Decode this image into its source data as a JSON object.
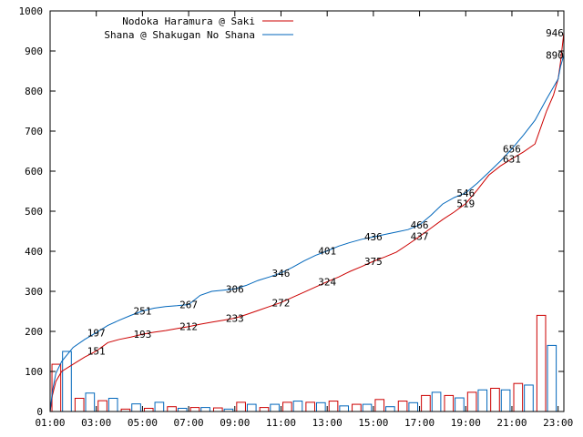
{
  "chart_data": {
    "type": "line",
    "title": "",
    "xlabel": "",
    "ylabel": "",
    "x_range_hours": [
      1.0,
      23.25
    ],
    "ylim": [
      0,
      1000
    ],
    "y_ticks": [
      0,
      100,
      200,
      300,
      400,
      500,
      600,
      700,
      800,
      900,
      1000
    ],
    "x_ticks": [
      {
        "hour": 1,
        "label": "01:00"
      },
      {
        "hour": 3,
        "label": "03:00"
      },
      {
        "hour": 5,
        "label": "05:00"
      },
      {
        "hour": 7,
        "label": "07:00"
      },
      {
        "hour": 9,
        "label": "09:00"
      },
      {
        "hour": 11,
        "label": "11:00"
      },
      {
        "hour": 13,
        "label": "13:00"
      },
      {
        "hour": 15,
        "label": "15:00"
      },
      {
        "hour": 17,
        "label": "17:00"
      },
      {
        "hour": 19,
        "label": "19:00"
      },
      {
        "hour": 21,
        "label": "21:00"
      },
      {
        "hour": 23,
        "label": "23:00"
      }
    ],
    "grid": false,
    "legend_position": "top-left",
    "series": [
      {
        "name": "Nodoka Haramura @ Saki",
        "color": "#cc0000",
        "cumulative": [
          [
            1.0,
            0
          ],
          [
            1.1,
            40
          ],
          [
            1.25,
            75
          ],
          [
            1.5,
            100
          ],
          [
            2.0,
            118
          ],
          [
            2.5,
            136
          ],
          [
            3.0,
            151
          ],
          [
            3.5,
            172
          ],
          [
            4.0,
            180
          ],
          [
            4.5,
            186
          ],
          [
            5.0,
            193
          ],
          [
            5.5,
            198
          ],
          [
            6.0,
            202
          ],
          [
            6.5,
            207
          ],
          [
            7.0,
            212
          ],
          [
            7.5,
            218
          ],
          [
            8.0,
            223
          ],
          [
            8.5,
            228
          ],
          [
            9.0,
            233
          ],
          [
            9.5,
            242
          ],
          [
            10.0,
            252
          ],
          [
            10.5,
            262
          ],
          [
            11.0,
            272
          ],
          [
            11.5,
            285
          ],
          [
            12.0,
            298
          ],
          [
            12.5,
            311
          ],
          [
            13.0,
            324
          ],
          [
            13.5,
            336
          ],
          [
            14.0,
            350
          ],
          [
            14.5,
            362
          ],
          [
            15.0,
            375
          ],
          [
            15.5,
            386
          ],
          [
            16.0,
            398
          ],
          [
            16.5,
            417
          ],
          [
            17.0,
            437
          ],
          [
            17.5,
            458
          ],
          [
            18.0,
            479
          ],
          [
            18.5,
            498
          ],
          [
            19.0,
            519
          ],
          [
            19.5,
            553
          ],
          [
            20.0,
            590
          ],
          [
            20.5,
            613
          ],
          [
            21.0,
            631
          ],
          [
            21.5,
            648
          ],
          [
            22.0,
            668
          ],
          [
            22.5,
            750
          ],
          [
            22.8,
            790
          ],
          [
            23.0,
            830
          ],
          [
            23.1,
            870
          ],
          [
            23.25,
            946
          ]
        ],
        "point_labels": [
          {
            "hour": 3,
            "value": 151
          },
          {
            "hour": 5,
            "value": 193
          },
          {
            "hour": 7,
            "value": 212
          },
          {
            "hour": 9,
            "value": 233
          },
          {
            "hour": 11,
            "value": 272
          },
          {
            "hour": 13,
            "value": 324
          },
          {
            "hour": 15,
            "value": 375
          },
          {
            "hour": 17,
            "value": 437
          },
          {
            "hour": 19,
            "value": 519
          },
          {
            "hour": 21,
            "value": 631
          },
          {
            "hour": 23.2,
            "value": 946
          }
        ],
        "hourly_counts": [
          118,
          33,
          27,
          6,
          8,
          12,
          10,
          9,
          23,
          10,
          23,
          23,
          26,
          18,
          30,
          26,
          40,
          40,
          48,
          58,
          70,
          240
        ]
      },
      {
        "name": "Shana @ Shakugan No Shana",
        "color": "#0066bb",
        "cumulative": [
          [
            1.0,
            0
          ],
          [
            1.1,
            50
          ],
          [
            1.25,
            95
          ],
          [
            1.5,
            125
          ],
          [
            2.0,
            160
          ],
          [
            2.5,
            180
          ],
          [
            3.0,
            197
          ],
          [
            3.5,
            215
          ],
          [
            4.0,
            228
          ],
          [
            4.5,
            240
          ],
          [
            5.0,
            251
          ],
          [
            5.5,
            258
          ],
          [
            6.0,
            262
          ],
          [
            6.5,
            264
          ],
          [
            7.0,
            267
          ],
          [
            7.5,
            290
          ],
          [
            8.0,
            300
          ],
          [
            8.5,
            303
          ],
          [
            9.0,
            306
          ],
          [
            9.5,
            315
          ],
          [
            10.0,
            327
          ],
          [
            10.5,
            336
          ],
          [
            11.0,
            346
          ],
          [
            11.5,
            360
          ],
          [
            12.0,
            376
          ],
          [
            12.5,
            390
          ],
          [
            13.0,
            401
          ],
          [
            13.5,
            413
          ],
          [
            14.0,
            422
          ],
          [
            14.5,
            430
          ],
          [
            15.0,
            436
          ],
          [
            15.5,
            442
          ],
          [
            16.0,
            448
          ],
          [
            16.5,
            454
          ],
          [
            17.0,
            466
          ],
          [
            17.5,
            490
          ],
          [
            18.0,
            518
          ],
          [
            18.5,
            534
          ],
          [
            19.0,
            546
          ],
          [
            19.5,
            570
          ],
          [
            20.0,
            597
          ],
          [
            20.5,
            625
          ],
          [
            21.0,
            656
          ],
          [
            21.5,
            690
          ],
          [
            22.0,
            727
          ],
          [
            22.5,
            780
          ],
          [
            22.8,
            810
          ],
          [
            23.0,
            830
          ],
          [
            23.1,
            860
          ],
          [
            23.25,
            890
          ]
        ],
        "point_labels": [
          {
            "hour": 3,
            "value": 197
          },
          {
            "hour": 5,
            "value": 251
          },
          {
            "hour": 7,
            "value": 267
          },
          {
            "hour": 9,
            "value": 306
          },
          {
            "hour": 11,
            "value": 346
          },
          {
            "hour": 13,
            "value": 401
          },
          {
            "hour": 15,
            "value": 436
          },
          {
            "hour": 17,
            "value": 466
          },
          {
            "hour": 19,
            "value": 546
          },
          {
            "hour": 21,
            "value": 656
          },
          {
            "hour": 23.2,
            "value": 890
          }
        ],
        "hourly_counts": [
          150,
          46,
          33,
          19,
          23,
          8,
          10,
          6,
          18,
          18,
          26,
          22,
          14,
          18,
          12,
          22,
          48,
          34,
          54,
          54,
          66,
          165
        ]
      }
    ],
    "bar_hours": [
      1,
      2,
      3,
      4,
      5,
      6,
      7,
      8,
      9,
      10,
      11,
      12,
      13,
      14,
      15,
      16,
      17,
      18,
      19,
      20,
      21,
      22
    ]
  }
}
